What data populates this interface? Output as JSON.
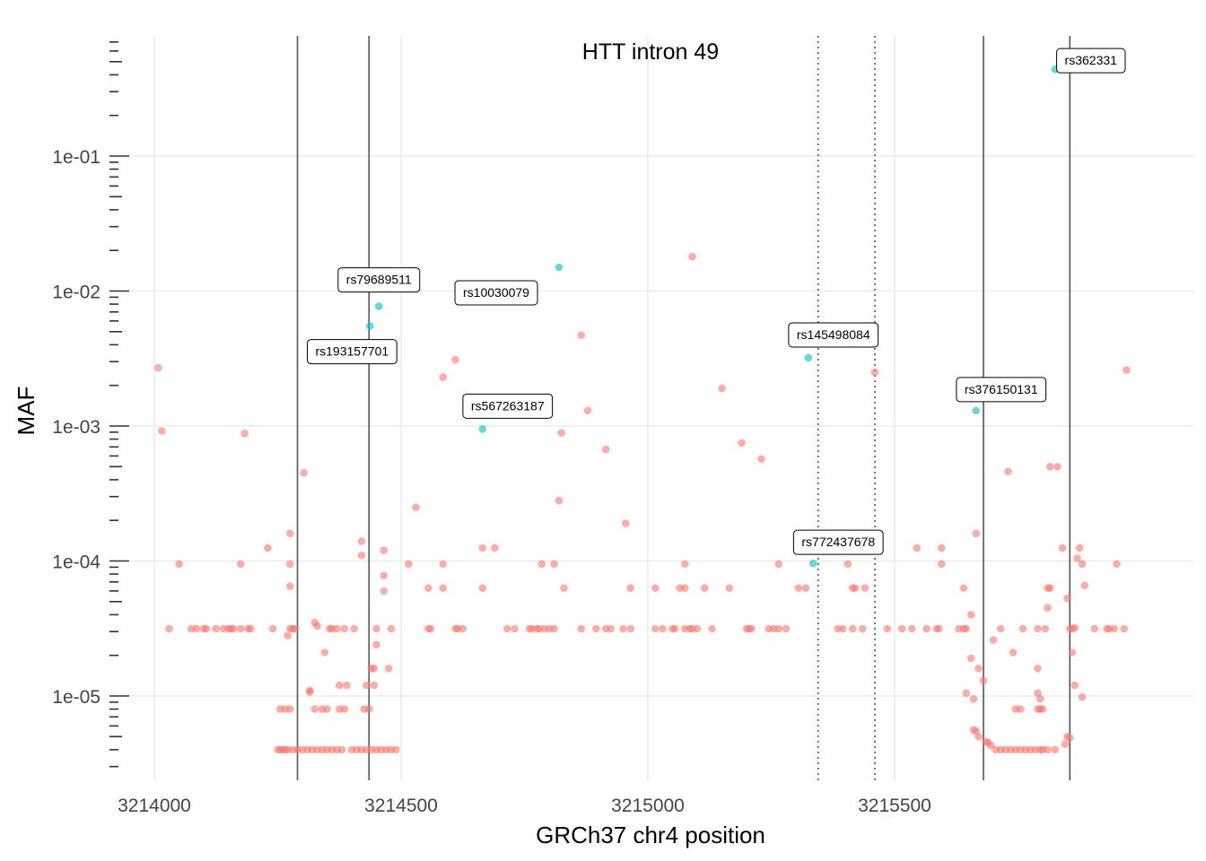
{
  "chart_data": {
    "type": "scatter",
    "title": "HTT intron 49",
    "xlabel": "GRCh37 chr4 position",
    "ylabel": "MAF",
    "xlim": [
      3213950,
      3216000
    ],
    "ylim": [
      2.5e-06,
      1.0
    ],
    "y_scale": "log10",
    "grid": true,
    "legend": "none",
    "x_ticks": [
      {
        "value": 3214000,
        "label": "3214000"
      },
      {
        "value": 3214500,
        "label": "3214500"
      },
      {
        "value": 3215000,
        "label": "3215000"
      },
      {
        "value": 3215500,
        "label": "3215500"
      }
    ],
    "y_ticks": [
      {
        "value": 1e-05,
        "label": "1e-05"
      },
      {
        "value": 0.0001,
        "label": "1e-04"
      },
      {
        "value": 0.001,
        "label": "1e-03"
      },
      {
        "value": 0.01,
        "label": "1e-02"
      },
      {
        "value": 0.1,
        "label": "1e-01"
      }
    ],
    "colors": {
      "other": "#F8766D",
      "labeled": "#00BFC4",
      "vline": "#555555",
      "grid": "#EBEBEB"
    },
    "solid_vlines": [
      3214290,
      3214435,
      3215680,
      3215855
    ],
    "dotted_vlines": [
      3215345,
      3215460
    ],
    "labeled_snps": [
      {
        "id": "rs79689511",
        "x": 3214455,
        "y": 0.0077
      },
      {
        "id": "rs193157701",
        "x": 3214437,
        "y": 0.0055
      },
      {
        "id": "rs10030079",
        "x": 3214820,
        "y": 0.015
      },
      {
        "id": "rs567263187",
        "x": 3214665,
        "y": 0.00095
      },
      {
        "id": "rs145498084",
        "x": 3215325,
        "y": 0.0032
      },
      {
        "id": "rs772437678",
        "x": 3215335,
        "y": 9.6e-05
      },
      {
        "id": "rs376150131",
        "x": 3215665,
        "y": 0.0013
      },
      {
        "id": "rs362331",
        "x": 3215825,
        "y": 0.44
      }
    ],
    "points": [
      [
        3214008,
        0.0027
      ],
      [
        3214015,
        0.00092
      ],
      [
        3214183,
        0.00088
      ],
      [
        3214303,
        0.00045
      ],
      [
        3214610,
        0.0031
      ],
      [
        3214585,
        0.0023
      ],
      [
        3214865,
        0.0047
      ],
      [
        3214878,
        0.0013
      ],
      [
        3214825,
        0.00089
      ],
      [
        3214915,
        0.00067
      ],
      [
        3215090,
        0.018
      ],
      [
        3215150,
        0.0019
      ],
      [
        3215190,
        0.00075
      ],
      [
        3215230,
        0.00057
      ],
      [
        3215460,
        0.0025
      ],
      [
        3215730,
        0.00046
      ],
      [
        3215815,
        0.0005
      ],
      [
        3215830,
        0.0005
      ],
      [
        3215970,
        0.0026
      ],
      [
        3214530,
        0.00025
      ],
      [
        3214820,
        0.00028
      ],
      [
        3214955,
        0.00019
      ],
      [
        3214275,
        0.00016
      ],
      [
        3214420,
        0.00014
      ],
      [
        3214420,
        0.00011
      ],
      [
        3214230,
        0.000125
      ],
      [
        3214465,
        0.00012
      ],
      [
        3214665,
        0.000125
      ],
      [
        3214690,
        0.000125
      ],
      [
        3215545,
        0.000125
      ],
      [
        3215595,
        0.000125
      ],
      [
        3215665,
        0.00016
      ],
      [
        3215840,
        0.000125
      ],
      [
        3215875,
        0.000125
      ],
      [
        3215870,
        0.000105
      ],
      [
        3215880,
        9.5e-05
      ],
      [
        3214050,
        9.5e-05
      ],
      [
        3214175,
        9.5e-05
      ],
      [
        3214275,
        9.5e-05
      ],
      [
        3214515,
        9.5e-05
      ],
      [
        3214585,
        9.5e-05
      ],
      [
        3214785,
        9.5e-05
      ],
      [
        3214810,
        9.5e-05
      ],
      [
        3215075,
        9.5e-05
      ],
      [
        3215265,
        9.5e-05
      ],
      [
        3215405,
        9.5e-05
      ],
      [
        3215595,
        9.5e-05
      ],
      [
        3215950,
        9.5e-05
      ],
      [
        3214465,
        7.8e-05
      ],
      [
        3214465,
        6e-05
      ],
      [
        3214275,
        6.5e-05
      ],
      [
        3214555,
        6.3e-05
      ],
      [
        3214585,
        6.3e-05
      ],
      [
        3214665,
        6.3e-05
      ],
      [
        3214830,
        6.3e-05
      ],
      [
        3214965,
        6.3e-05
      ],
      [
        3215015,
        6.3e-05
      ],
      [
        3215065,
        6.3e-05
      ],
      [
        3215075,
        6.3e-05
      ],
      [
        3215115,
        6.3e-05
      ],
      [
        3215165,
        6.3e-05
      ],
      [
        3215305,
        6.3e-05
      ],
      [
        3215320,
        6.3e-05
      ],
      [
        3215415,
        6.3e-05
      ],
      [
        3215420,
        6.3e-05
      ],
      [
        3215440,
        6.3e-05
      ],
      [
        3215640,
        6.3e-05
      ],
      [
        3215810,
        6.3e-05
      ],
      [
        3215815,
        6.3e-05
      ],
      [
        3215885,
        6.6e-05
      ],
      [
        3215850,
        5.3e-05
      ],
      [
        3215655,
        4e-05
      ],
      [
        3215810,
        4.5e-05
      ],
      [
        3215865,
        3.2e-05
      ],
      [
        3214325,
        3.5e-05
      ],
      [
        3214330,
        3.3e-05
      ],
      [
        3214270,
        2.8e-05
      ],
      [
        3214450,
        2.4e-05
      ],
      [
        3214345,
        2.1e-05
      ],
      [
        3214440,
        1.6e-05
      ],
      [
        3214445,
        1.6e-05
      ],
      [
        3214475,
        1.6e-05
      ],
      [
        3215655,
        1.9e-05
      ],
      [
        3215740,
        2.1e-05
      ],
      [
        3215670,
        1.6e-05
      ],
      [
        3215790,
        1.6e-05
      ],
      [
        3215700,
        2.6e-05
      ],
      [
        3215860,
        2.1e-05
      ],
      [
        3215680,
        1.3e-05
      ],
      [
        3215865,
        1.2e-05
      ],
      [
        3214375,
        1.2e-05
      ],
      [
        3214390,
        1.2e-05
      ],
      [
        3214430,
        1.2e-05
      ],
      [
        3214445,
        1.2e-05
      ],
      [
        3214315,
        1.1e-05
      ],
      [
        3214315,
        1.07e-05
      ],
      [
        3215645,
        1.05e-05
      ],
      [
        3215660,
        9.5e-06
      ],
      [
        3215790,
        1.05e-05
      ],
      [
        3215795,
        9.5e-06
      ],
      [
        3215880,
        9.8e-06
      ]
    ],
    "baseline_y": 3.15e-05,
    "baseline_x": [
      3214030,
      3214075,
      3214085,
      3214100,
      3214105,
      3214125,
      3214140,
      3214150,
      3214155,
      3214160,
      3214175,
      3214190,
      3214195,
      3214240,
      3214275,
      3214280,
      3214285,
      3214355,
      3214360,
      3214370,
      3214385,
      3214405,
      3214450,
      3214480,
      3214555,
      3214560,
      3214610,
      3214615,
      3214625,
      3214715,
      3214730,
      3214760,
      3214765,
      3214775,
      3214780,
      3214790,
      3214800,
      3214810,
      3214865,
      3214895,
      3214915,
      3214925,
      3214950,
      3214965,
      3215015,
      3215030,
      3215050,
      3215055,
      3215075,
      3215085,
      3215090,
      3215100,
      3215130,
      3215200,
      3215205,
      3215210,
      3215245,
      3215255,
      3215265,
      3215280,
      3215385,
      3215395,
      3215415,
      3215435,
      3215485,
      3215515,
      3215535,
      3215565,
      3215585,
      3215590,
      3215630,
      3215640,
      3215645,
      3215715,
      3215760,
      3215790,
      3215805,
      3215855,
      3215860,
      3215905,
      3215930,
      3215935,
      3215945,
      3215965
    ],
    "rare_y1": 8e-06,
    "rare_x1": [
      3214255,
      3214265,
      3214275,
      3214325,
      3214340,
      3214350,
      3214375,
      3214385,
      3214425,
      3214435,
      3215745,
      3215755,
      3215790,
      3215795,
      3215800
    ],
    "floor_x": [
      3214250,
      3214255,
      3214260,
      3214265,
      3214270,
      3214280,
      3214290,
      3214300,
      3214310,
      3214320,
      3214330,
      3214340,
      3214350,
      3214360,
      3214370,
      3214380,
      3214400,
      3214410,
      3214420,
      3214430,
      3214440,
      3214450,
      3214460,
      3214470,
      3214480,
      3214490,
      3215705,
      3215715,
      3215725,
      3215735,
      3215745,
      3215755,
      3215765,
      3215775,
      3215785,
      3215795,
      3215800,
      3215810,
      3215825
    ],
    "floor_y": 4e-06,
    "tail_points": [
      [
        3215660,
        5.6e-06
      ],
      [
        3215665,
        5.5e-06
      ],
      [
        3215670,
        5e-06
      ],
      [
        3215685,
        4.6e-06
      ],
      [
        3215690,
        4.5e-06
      ],
      [
        3215695,
        4.3e-06
      ],
      [
        3215850,
        5e-06
      ],
      [
        3215855,
        4.9e-06
      ],
      [
        3215845,
        4.4e-06
      ]
    ]
  }
}
